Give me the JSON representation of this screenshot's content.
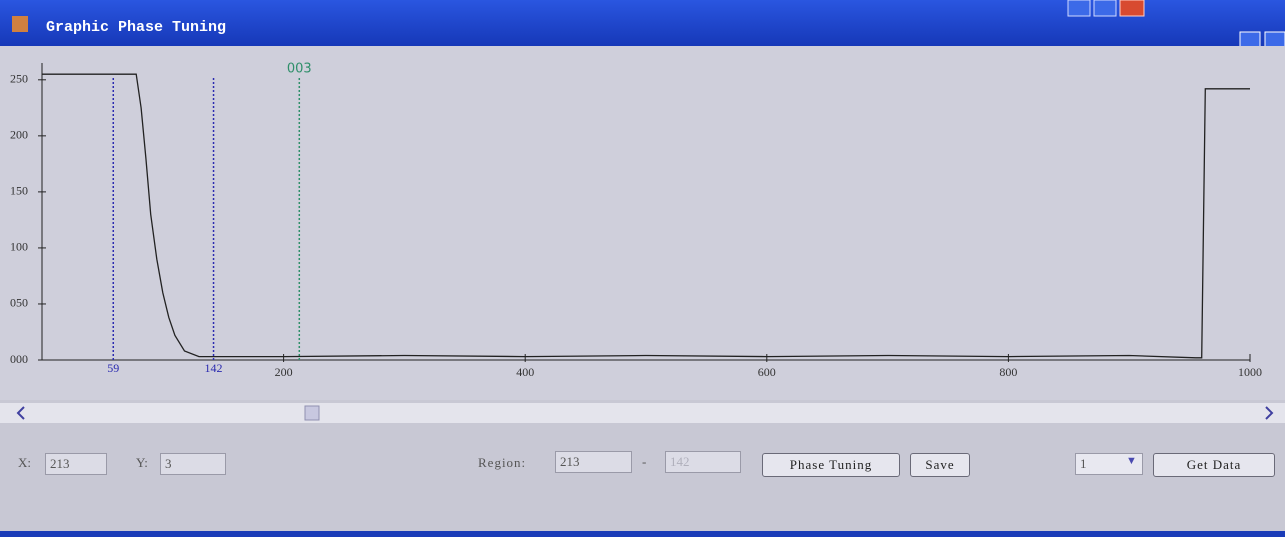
{
  "window": {
    "title": "Graphic Phase Tuning"
  },
  "chart_data": {
    "type": "line",
    "x": [
      0,
      78,
      82,
      86,
      90,
      95,
      100,
      105,
      110,
      118,
      130,
      200,
      300,
      400,
      500,
      600,
      700,
      800,
      900,
      955,
      960,
      963,
      1000
    ],
    "values": [
      255,
      255,
      225,
      180,
      130,
      90,
      60,
      38,
      22,
      8,
      3,
      3,
      4,
      3,
      4,
      3,
      4,
      3,
      4,
      2,
      2,
      242,
      242
    ],
    "color": "#222222",
    "xlim": [
      0,
      1000
    ],
    "ylim": [
      0,
      265
    ],
    "xticks": [
      200,
      400,
      600,
      800,
      1000
    ],
    "yticks": [
      {
        "value": 0,
        "label": "000"
      },
      {
        "value": 50,
        "label": "050"
      },
      100,
      150,
      200,
      250
    ],
    "cursors": [
      {
        "x": 59,
        "color": "#2b2bb0"
      },
      {
        "x": 142,
        "color": "#2b2bb0"
      },
      {
        "x": 213,
        "label": "003",
        "color": "#2f8f6a"
      }
    ]
  },
  "controls": {
    "x_label": "X:",
    "x_value": "213",
    "y_label": "Y:",
    "y_value": "3",
    "region_label": "Region:",
    "region_start": "213",
    "region_sep": "-",
    "region_end": "142",
    "phase_button": "Phase Tuning",
    "save_button": "Save",
    "select_value": "1",
    "get_data_button": "Get Data"
  }
}
